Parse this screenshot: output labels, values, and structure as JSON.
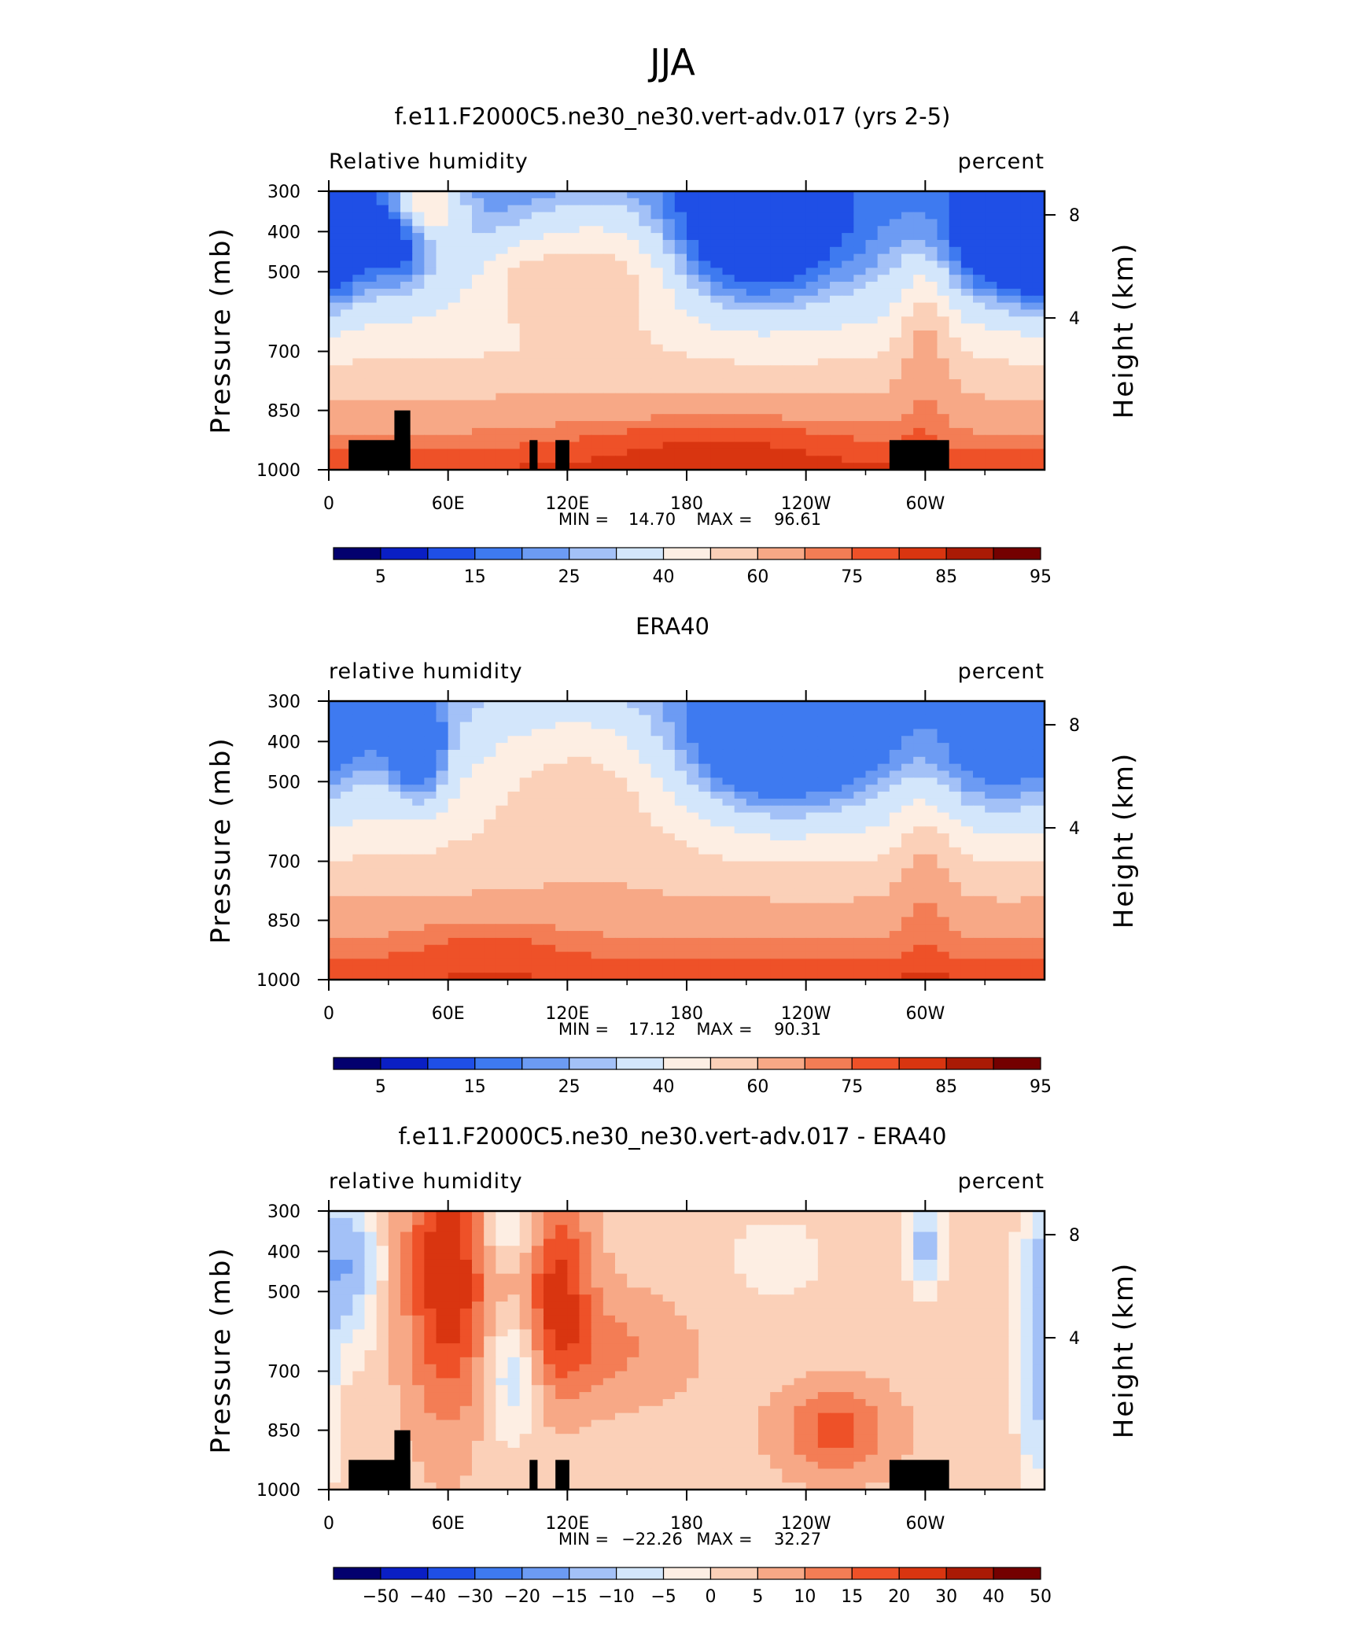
{
  "figure_title": "JJA",
  "colors": {
    "rh_scale": [
      "#03006e",
      "#0a1fc4",
      "#1f4fe6",
      "#3e7af0",
      "#6c9bf3",
      "#a3c1f7",
      "#d3e6fb",
      "#fdeee3",
      "#fbd0b8",
      "#f7a886",
      "#f37d55",
      "#ee5128",
      "#d93510",
      "#aa1a05",
      "#740000"
    ],
    "diff_scale": [
      "#03006e",
      "#0a1fc4",
      "#1f4fe6",
      "#3e7af0",
      "#6c9bf3",
      "#a3c1f7",
      "#d3e6fb",
      "#fdeee3",
      "#fbd0b8",
      "#f7a886",
      "#f37d55",
      "#ee5128",
      "#d93510",
      "#aa1a05",
      "#740000"
    ],
    "topography": "#000000"
  },
  "panels": [
    {
      "title": "f.e11.F2000C5.ne30_ne30.vert-adv.017 (yrs 2-5)",
      "left_label": "Relative humidity",
      "right_label": "percent",
      "y_left_title": "Pressure (mb)",
      "y_right_title": "Height (km)",
      "stats": {
        "min_label": "MIN =",
        "min": "14.70",
        "max_label": "MAX =",
        "max": "96.61"
      },
      "colorbar_labels": [
        "5",
        "15",
        "25",
        "40",
        "60",
        "75",
        "85",
        "95"
      ],
      "show_topography": true
    },
    {
      "title": "ERA40",
      "left_label": "relative humidity",
      "right_label": "percent",
      "y_left_title": "Pressure (mb)",
      "y_right_title": "Height (km)",
      "stats": {
        "min_label": "MIN =",
        "min": "17.12",
        "max_label": "MAX =",
        "max": "90.31"
      },
      "colorbar_labels": [
        "5",
        "15",
        "25",
        "40",
        "60",
        "75",
        "85",
        "95"
      ],
      "show_topography": false
    },
    {
      "title": "f.e11.F2000C5.ne30_ne30.vert-adv.017 - ERA40",
      "left_label": "relative humidity",
      "right_label": "percent",
      "y_left_title": "Pressure (mb)",
      "y_right_title": "Height (km)",
      "stats": {
        "min_label": "MIN =",
        "min": "−22.26",
        "max_label": "MAX =",
        "max": "32.27"
      },
      "colorbar_labels": [
        "−50",
        "−40",
        "−30",
        "−20",
        "−15",
        "−10",
        "−5",
        "0",
        "5",
        "10",
        "15",
        "20",
        "30",
        "40",
        "50"
      ],
      "show_topography": true
    }
  ],
  "chart_data": [
    {
      "type": "heatmap",
      "title": "f.e11.F2000C5.ne30_ne30.vert-adv.017 (yrs 2-5)",
      "variable": "Relative humidity",
      "units": "percent",
      "x_ticks": [
        "0",
        "60E",
        "120E",
        "180",
        "120W",
        "60W"
      ],
      "x_range_deg": [
        0,
        360
      ],
      "y_ticks_left": [
        "300",
        "400",
        "500",
        "700",
        "850",
        "1000"
      ],
      "y_ticks_right": [
        "8",
        "4"
      ],
      "y_range_mb": [
        300,
        1000
      ],
      "levels": [
        5,
        10,
        15,
        20,
        25,
        30,
        40,
        50,
        60,
        70,
        75,
        80,
        85,
        90,
        95
      ],
      "min": 14.7,
      "max": 96.61
    },
    {
      "type": "heatmap",
      "title": "ERA40",
      "variable": "relative humidity",
      "units": "percent",
      "x_ticks": [
        "0",
        "60E",
        "120E",
        "180",
        "120W",
        "60W"
      ],
      "x_range_deg": [
        0,
        360
      ],
      "y_ticks_left": [
        "300",
        "400",
        "500",
        "700",
        "850",
        "1000"
      ],
      "y_ticks_right": [
        "8",
        "4"
      ],
      "y_range_mb": [
        300,
        1000
      ],
      "levels": [
        5,
        10,
        15,
        20,
        25,
        30,
        40,
        50,
        60,
        70,
        75,
        80,
        85,
        90,
        95
      ],
      "min": 17.12,
      "max": 90.31
    },
    {
      "type": "heatmap",
      "title": "f.e11.F2000C5.ne30_ne30.vert-adv.017 - ERA40",
      "variable": "relative humidity",
      "units": "percent",
      "x_ticks": [
        "0",
        "60E",
        "120E",
        "180",
        "120W",
        "60W"
      ],
      "x_range_deg": [
        0,
        360
      ],
      "y_ticks_left": [
        "300",
        "400",
        "500",
        "700",
        "850",
        "1000"
      ],
      "y_ticks_right": [
        "8",
        "4"
      ],
      "y_range_mb": [
        300,
        1000
      ],
      "levels": [
        -50,
        -40,
        -30,
        -20,
        -15,
        -10,
        -5,
        0,
        5,
        10,
        15,
        20,
        30,
        40,
        50
      ],
      "min": -22.26,
      "max": 32.27
    }
  ]
}
